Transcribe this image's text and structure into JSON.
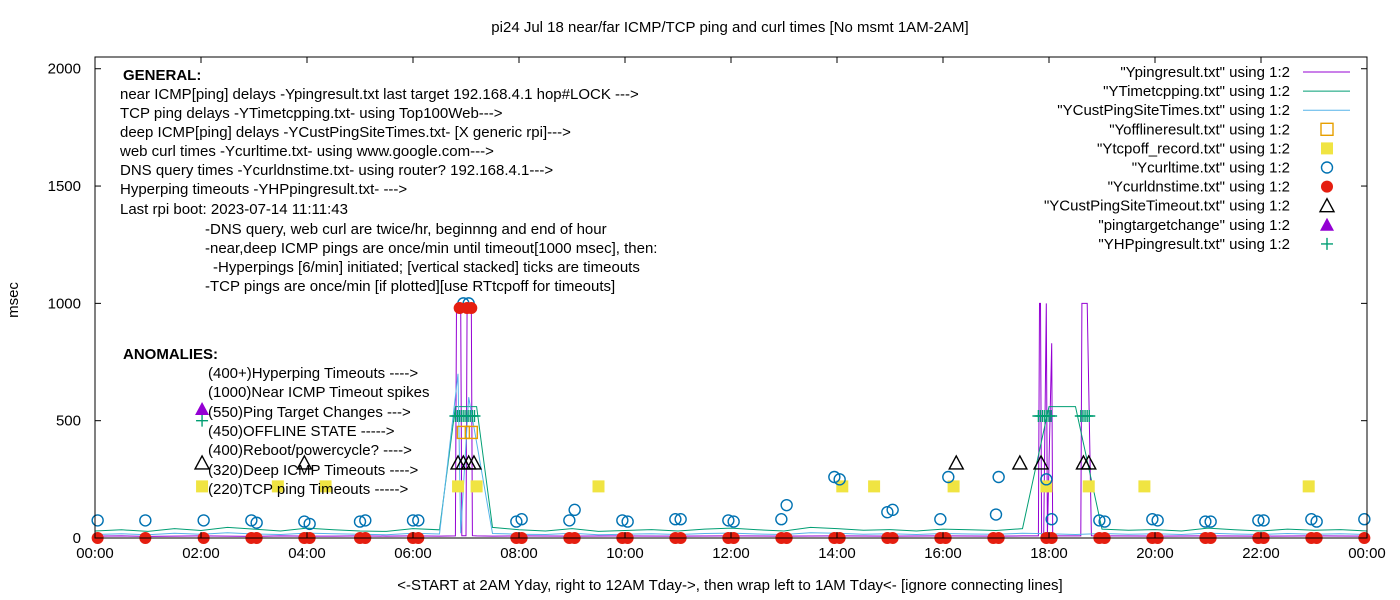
{
  "chart_data": {
    "type": "line",
    "title": "pi24 Jul 18  near/far ICMP/TCP ping and curl times [No msmt 1AM-2AM]",
    "xlabel": "<-START at 2AM Yday, right to 12AM Tday->, then wrap left to 1AM Tday<- [ignore connecting lines]",
    "ylabel": "msec",
    "xlim": [
      0,
      24
    ],
    "ylim": [
      0,
      2050
    ],
    "x_ticks": [
      "00:00",
      "02:00",
      "04:00",
      "06:00",
      "08:00",
      "10:00",
      "12:00",
      "14:00",
      "16:00",
      "18:00",
      "20:00",
      "22:00",
      "00:00"
    ],
    "y_ticks": [
      "0",
      "500",
      "1000",
      "1500",
      "2000"
    ],
    "grid": false,
    "legend_position": "top-right",
    "notes": [
      {
        "text": "GENERAL:",
        "bold": true
      },
      {
        "text": "near ICMP[ping] delays -Ypingresult.txt last target 192.168.4.1 hop#LOCK --->"
      },
      {
        "text": "TCP ping delays -YTimetcpping.txt- using Top100Web--->"
      },
      {
        "text": "deep ICMP[ping] delays -YCustPingSiteTimes.txt- [X generic rpi]--->"
      },
      {
        "text": "web curl times -Ycurltime.txt- using www.google.com--->"
      },
      {
        "text": "DNS query times -Ycurldnstime.txt- using router? 192.168.4.1--->"
      },
      {
        "text": "Hyperping timeouts -YHPpingresult.txt- --->"
      },
      {
        "text": "Last rpi boot: 2023-07-14 11:11:43"
      },
      {
        "text": "-DNS query, web curl are twice/hr, beginnng and end of hour"
      },
      {
        "text": "-near,deep ICMP pings are once/min until timeout[1000 msec], then:"
      },
      {
        "text": "-Hyperpings [6/min] initiated; [vertical stacked] ticks are timeouts"
      },
      {
        "text": "-TCP pings are once/min [if plotted][use RTtcpoff for timeouts]"
      },
      {
        "text": "ANOMALIES:",
        "bold": true
      },
      {
        "text": "(400+)Hyperping Timeouts ---->"
      },
      {
        "text": "(1000)Near ICMP Timeout spikes"
      },
      {
        "text": "(550)Ping Target Changes --->"
      },
      {
        "text": "(450)OFFLINE STATE ----->"
      },
      {
        "text": "(400)Reboot/powercycle? ---->"
      },
      {
        "text": "(320)Deep ICMP Timeouts ---->"
      },
      {
        "text": "(220)TCP ping Timeouts ----->"
      }
    ],
    "anomaly_markers": [
      {
        "name": "\"YHPpingresult.txt\" using 1:2",
        "x": 2.02,
        "y": 500
      },
      {
        "name": "\"pingtargetchange\" using 1:2",
        "x": 2.02,
        "y": 550
      },
      {
        "name": "\"YCustPingSiteTimeout.txt\" using 1:2",
        "x": 2.02,
        "y": 320
      },
      {
        "name": "\"Ytcpoff_record.txt\" using 1:2",
        "x": 2.02,
        "y": 220
      }
    ],
    "series": [
      {
        "name": "\"Ypingresult.txt\" using 1:2",
        "style": "line",
        "color": "#9400d3",
        "x": [
          0,
          0.5,
          1,
          1.5,
          2,
          2.5,
          3,
          3.5,
          4,
          4.5,
          5,
          5.5,
          6,
          6.5,
          6.8,
          6.82,
          6.9,
          6.92,
          7.0,
          7.02,
          7.1,
          7.12,
          7.2,
          7.5,
          8,
          9,
          10,
          11,
          12,
          13,
          14,
          15,
          16,
          17,
          17.5,
          17.8,
          17.82,
          17.84,
          17.86,
          17.9,
          17.95,
          17.97,
          18.05,
          18.07,
          18.2,
          18.6,
          18.62,
          18.64,
          18.7,
          18.72,
          18.8,
          19,
          20,
          21,
          22,
          23,
          24
        ],
        "y": [
          8,
          9,
          7,
          8,
          9,
          8,
          7,
          9,
          8,
          8,
          9,
          8,
          9,
          8,
          9,
          1000,
          1000,
          10,
          10,
          1000,
          1000,
          10,
          9,
          8,
          9,
          8,
          9,
          8,
          9,
          8,
          9,
          8,
          9,
          8,
          9,
          9,
          1000,
          1000,
          10,
          10,
          1000,
          10,
          830,
          10,
          9,
          9,
          1000,
          1000,
          1000,
          1000,
          10,
          9,
          8,
          9,
          8,
          9,
          8
        ]
      },
      {
        "name": "\"YTimetcpping.txt\" using 1:2",
        "style": "line",
        "color": "#009e73",
        "x": [
          0,
          0.5,
          1,
          1.5,
          2,
          2.5,
          3,
          3.5,
          4,
          4.5,
          5,
          5.5,
          6,
          6.5,
          6.8,
          7,
          7.2,
          7.5,
          8,
          8.5,
          9,
          9.5,
          10,
          10.5,
          11,
          11.5,
          12,
          12.5,
          13,
          13.5,
          14,
          14.5,
          15,
          15.5,
          16,
          16.5,
          17,
          17.5,
          18,
          18.5,
          19,
          19.5,
          20,
          20.5,
          21,
          21.5,
          22,
          22.5,
          23,
          23.5,
          24
        ],
        "y": [
          30,
          35,
          28,
          40,
          32,
          45,
          38,
          30,
          42,
          35,
          30,
          28,
          40,
          35,
          560,
          560,
          560,
          45,
          35,
          30,
          40,
          28,
          32,
          36,
          30,
          38,
          42,
          35,
          30,
          45,
          40,
          33,
          36,
          30,
          38,
          35,
          32,
          40,
          560,
          560,
          38,
          33,
          36,
          30,
          42,
          35,
          30,
          38,
          33,
          36,
          30
        ]
      },
      {
        "name": "\"YCustPingSiteTimes.txt\" using 1:2",
        "style": "line",
        "color": "#56b4e9",
        "x": [
          0,
          0.5,
          1,
          1.5,
          2,
          2.5,
          3,
          3.5,
          4,
          4.5,
          5,
          5.5,
          6,
          6.5,
          6.85,
          6.9,
          7.05,
          7.5,
          8,
          8.5,
          9,
          9.5,
          10,
          10.5,
          11,
          11.5,
          12,
          12.5,
          13,
          13.5,
          14,
          14.5,
          15,
          15.5,
          16,
          16.5,
          17,
          17.5,
          18,
          18.5,
          19,
          19.5,
          20,
          20.5,
          21,
          21.5,
          22,
          22.5,
          23,
          23.5,
          24
        ],
        "y": [
          15,
          18,
          14,
          20,
          16,
          22,
          17,
          15,
          21,
          18,
          16,
          14,
          20,
          17,
          700,
          20,
          600,
          19,
          16,
          15,
          20,
          14,
          16,
          18,
          15,
          19,
          21,
          17,
          15,
          22,
          20,
          16,
          18,
          15,
          19,
          17,
          16,
          20,
          18,
          15,
          19,
          16,
          18,
          15,
          21,
          17,
          15,
          19,
          16,
          18,
          15
        ]
      },
      {
        "name": "\"Yofflineresult.txt\" using 1:2",
        "style": "open-square",
        "color": "#e69f00",
        "x": [
          6.95,
          7.1
        ],
        "y": [
          450,
          450
        ]
      },
      {
        "name": "\"Ytcpoff_record.txt\" using 1:2",
        "style": "filled-square",
        "color": "#f0e442",
        "x": [
          3.45,
          4.35,
          6.85,
          7.2,
          9.5,
          14.1,
          14.7,
          16.2,
          17.95,
          18.75,
          19.8,
          22.9
        ],
        "y": [
          220,
          220,
          220,
          220,
          220,
          220,
          220,
          220,
          220,
          220,
          220,
          220
        ]
      },
      {
        "name": "\"Ycurltime.txt\" using 1:2",
        "style": "open-circle",
        "color": "#0072b2",
        "x": [
          0.05,
          0.95,
          2.05,
          2.95,
          3.05,
          3.95,
          4.05,
          5.0,
          5.1,
          6.0,
          6.1,
          6.95,
          7.05,
          7.95,
          8.05,
          8.95,
          9.05,
          9.95,
          10.05,
          10.95,
          11.05,
          11.95,
          12.05,
          12.95,
          13.05,
          13.95,
          14.05,
          14.95,
          15.05,
          15.95,
          16.1,
          17.0,
          17.05,
          17.95,
          18.05,
          18.95,
          19.05,
          19.95,
          20.05,
          20.95,
          21.05,
          21.95,
          22.05,
          22.95,
          23.05,
          23.95
        ],
        "y": [
          75,
          75,
          75,
          75,
          65,
          70,
          60,
          70,
          75,
          75,
          75,
          1000,
          1000,
          70,
          80,
          75,
          120,
          75,
          70,
          80,
          80,
          75,
          70,
          80,
          140,
          260,
          250,
          110,
          120,
          80,
          260,
          100,
          260,
          250,
          80,
          75,
          70,
          80,
          75,
          70,
          70,
          75,
          75,
          80,
          70,
          80
        ]
      },
      {
        "name": "\"Ycurldnstime.txt\" using 1:2",
        "style": "filled-circle",
        "color": "#e51e10",
        "x": [
          0.05,
          0.95,
          2.05,
          2.95,
          3.05,
          3.95,
          4.05,
          5.0,
          5.1,
          6.0,
          6.1,
          6.88,
          7.02,
          7.1,
          7.95,
          8.05,
          8.95,
          9.05,
          9.95,
          10.05,
          10.95,
          11.05,
          11.95,
          12.05,
          12.95,
          13.05,
          13.95,
          14.05,
          14.95,
          15.05,
          15.95,
          16.05,
          16.95,
          17.05,
          17.95,
          18.05,
          18.95,
          19.05,
          19.95,
          20.05,
          20.95,
          21.05,
          21.95,
          22.05,
          22.95,
          23.05,
          23.95
        ],
        "y": [
          0,
          0,
          0,
          0,
          0,
          0,
          0,
          0,
          0,
          0,
          0,
          980,
          980,
          980,
          0,
          0,
          0,
          0,
          0,
          0,
          0,
          0,
          0,
          0,
          0,
          0,
          0,
          0,
          0,
          0,
          0,
          0,
          0,
          0,
          0,
          0,
          0,
          0,
          0,
          0,
          0,
          0,
          0,
          0,
          0,
          0,
          0
        ]
      },
      {
        "name": "\"YCustPingSiteTimeout.txt\" using 1:2",
        "style": "open-triangle",
        "color": "#000000",
        "x": [
          3.95,
          6.85,
          6.95,
          7.05,
          7.15,
          16.25,
          17.45,
          17.85,
          18.65,
          18.75
        ],
        "y": [
          320,
          320,
          320,
          320,
          320,
          320,
          320,
          320,
          320,
          320
        ]
      },
      {
        "name": "\"pingtargetchange\" using 1:2",
        "style": "filled-triangle",
        "color": "#9400d3",
        "x": [],
        "y": []
      },
      {
        "name": "\"YHPpingresult.txt\" using 1:2",
        "style": "plus",
        "color": "#009e73",
        "x": [
          6.8,
          6.84,
          6.88,
          6.92,
          6.96,
          7.0,
          7.04,
          7.08,
          7.12,
          7.16,
          17.8,
          17.84,
          17.88,
          17.92,
          17.96,
          18.0,
          18.04,
          18.6,
          18.64,
          18.68,
          18.72,
          18.76
        ],
        "y": [
          520,
          520,
          520,
          520,
          520,
          520,
          520,
          520,
          520,
          520,
          520,
          520,
          520,
          520,
          520,
          520,
          520,
          520,
          520,
          520,
          520,
          520
        ]
      }
    ]
  }
}
